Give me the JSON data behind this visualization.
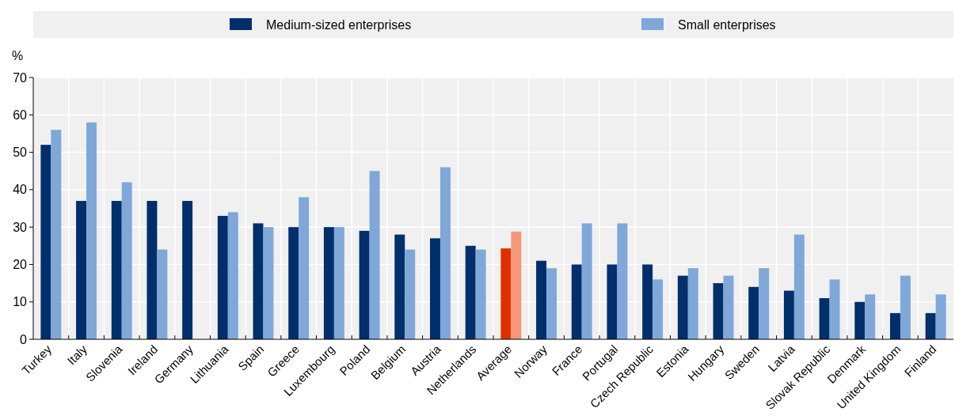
{
  "chart_data": {
    "type": "bar",
    "ylabel": "%",
    "categories": [
      "Turkey",
      "Italy",
      "Slovenia",
      "Ireland",
      "Germany",
      "Lithuania",
      "Spain",
      "Greece",
      "Luxembourg",
      "Poland",
      "Belgium",
      "Austria",
      "Netherlands",
      "Average",
      "Norway",
      "France",
      "Portugal",
      "Czech Republic",
      "Estonia",
      "Hungary",
      "Sweden",
      "Latvia",
      "Slovak Republic",
      "Denmark",
      "United Kingdom",
      "Finland"
    ],
    "series": [
      {
        "name": "Medium-sized enterprises",
        "color": "#002f6c",
        "colors": [
          "#002f6c",
          "#002f6c",
          "#002f6c",
          "#002f6c",
          "#002f6c",
          "#002f6c",
          "#002f6c",
          "#002f6c",
          "#002f6c",
          "#002f6c",
          "#002f6c",
          "#002f6c",
          "#002f6c",
          "#e03000",
          "#002f6c",
          "#002f6c",
          "#002f6c",
          "#002f6c",
          "#002f6c",
          "#002f6c",
          "#002f6c",
          "#002f6c",
          "#002f6c",
          "#002f6c",
          "#002f6c",
          "#002f6c"
        ],
        "values": [
          52,
          37,
          37,
          37,
          37,
          33,
          31,
          30,
          30,
          29,
          28,
          27,
          25,
          24.3,
          21,
          20,
          20,
          20,
          17,
          15,
          14,
          13,
          11,
          10,
          7,
          7
        ]
      },
      {
        "name": "Small enterprises",
        "color": "#7fa8d9",
        "colors": [
          "#7fa8d9",
          "#7fa8d9",
          "#7fa8d9",
          "#7fa8d9",
          "#7fa8d9",
          "#7fa8d9",
          "#7fa8d9",
          "#7fa8d9",
          "#7fa8d9",
          "#7fa8d9",
          "#7fa8d9",
          "#7fa8d9",
          "#7fa8d9",
          "#f4987a",
          "#7fa8d9",
          "#7fa8d9",
          "#7fa8d9",
          "#7fa8d9",
          "#7fa8d9",
          "#7fa8d9",
          "#7fa8d9",
          "#7fa8d9",
          "#7fa8d9",
          "#7fa8d9",
          "#7fa8d9",
          "#7fa8d9"
        ],
        "values": [
          56,
          58,
          42,
          24,
          null,
          34,
          30,
          38,
          30,
          45,
          24,
          46,
          24,
          28.8,
          19,
          31,
          31,
          16,
          19,
          17,
          19,
          28,
          16,
          12,
          17,
          12
        ]
      }
    ],
    "ylim": [
      0,
      70
    ],
    "yticks": [
      0,
      10,
      20,
      30,
      40,
      50,
      60,
      70
    ],
    "grid": true,
    "legend": "top"
  }
}
